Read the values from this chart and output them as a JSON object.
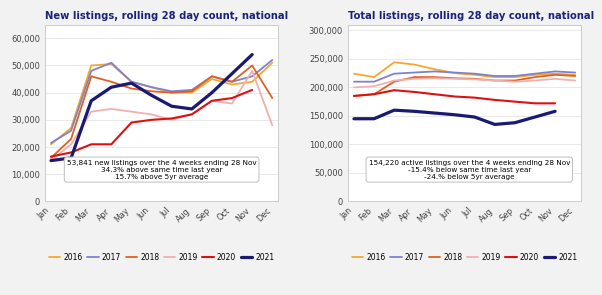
{
  "title_left": "New listings, rolling 28 day count, national",
  "title_right": "Total listings, rolling 28 day count, national",
  "months": [
    "Jan",
    "Feb",
    "Mar",
    "Apr",
    "May",
    "Jun",
    "Jul",
    "Aug",
    "Sep",
    "Oct",
    "Nov",
    "Dec"
  ],
  "legend_labels": [
    "2016",
    "2017",
    "2018",
    "2019",
    "2020",
    "2021"
  ],
  "line_colors": [
    "#f5a830",
    "#8080d0",
    "#e06020",
    "#f0b0b0",
    "#dd1111",
    "#1a1a72"
  ],
  "line_widths": [
    1.3,
    1.3,
    1.3,
    1.3,
    1.5,
    2.3
  ],
  "new_listings": {
    "2016": [
      21000,
      27000,
      50000,
      50500,
      44000,
      42000,
      40000,
      40000,
      45000,
      43000,
      44000,
      51000
    ],
    "2017": [
      21500,
      26000,
      48000,
      51000,
      44000,
      42000,
      40500,
      41000,
      46000,
      44000,
      46000,
      52000
    ],
    "2018": [
      16000,
      23000,
      46000,
      44000,
      41500,
      40500,
      40000,
      40500,
      46000,
      44000,
      50000,
      38000
    ],
    "2019": [
      15000,
      21000,
      33000,
      34000,
      33000,
      32000,
      30000,
      32000,
      37000,
      36000,
      48000,
      28000
    ],
    "2020": [
      16500,
      18000,
      21000,
      21000,
      29000,
      30000,
      30500,
      32000,
      37000,
      38000,
      41000,
      null
    ],
    "2021": [
      15000,
      16000,
      37000,
      42000,
      43500,
      39000,
      35000,
      34000,
      40000,
      47000,
      54000,
      null
    ]
  },
  "total_listings": {
    "2016": [
      224000,
      218000,
      244000,
      240000,
      232000,
      225000,
      222000,
      218000,
      218000,
      222000,
      224000,
      222000
    ],
    "2017": [
      210000,
      210000,
      224000,
      226000,
      228000,
      226000,
      224000,
      220000,
      220000,
      224000,
      228000,
      226000
    ],
    "2018": [
      185000,
      188000,
      210000,
      218000,
      218000,
      216000,
      215000,
      212000,
      212000,
      218000,
      222000,
      220000
    ],
    "2019": [
      200000,
      202000,
      212000,
      215000,
      216000,
      215000,
      214000,
      212000,
      210000,
      212000,
      215000,
      212000
    ],
    "2020": [
      185000,
      188000,
      195000,
      192000,
      188000,
      184000,
      182000,
      178000,
      175000,
      172000,
      172000,
      null
    ],
    "2021": [
      145000,
      145000,
      160000,
      158000,
      155000,
      152000,
      148000,
      135000,
      138000,
      148000,
      158000,
      null
    ]
  },
  "new_ylim": [
    0,
    65000
  ],
  "new_yticks": [
    0,
    10000,
    20000,
    30000,
    40000,
    50000,
    60000
  ],
  "total_ylim": [
    0,
    310000
  ],
  "total_yticks": [
    0,
    50000,
    100000,
    150000,
    200000,
    250000,
    300000
  ],
  "annotation_new": "53,841 new listings over the 4 weeks ending 28 Nov\n34.3% above same time last year\n15.7% above 5yr average",
  "annotation_total": "154,220 active listings over the 4 weeks ending 28 Nov\n-15.4% below same time last year\n-24.% below 5yr average",
  "bg_color": "#f2f2f2",
  "plot_bg": "#ffffff",
  "title_color": "#1a237e",
  "tick_color": "#444444",
  "spine_color": "#cccccc"
}
